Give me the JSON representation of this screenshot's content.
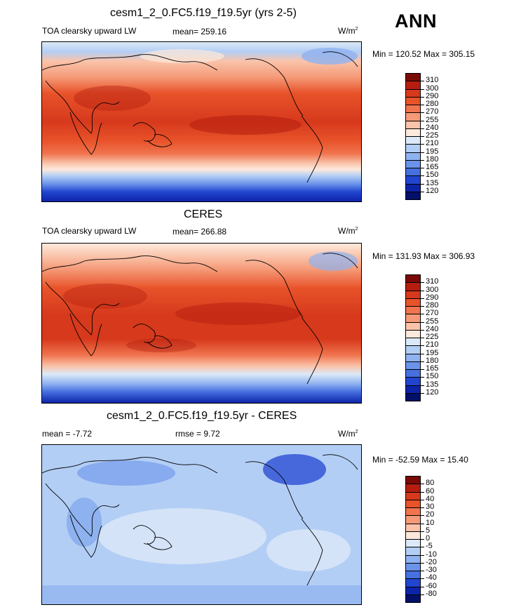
{
  "header": {
    "season": "ANN"
  },
  "panels": [
    {
      "title": "cesm1_2_0.FC5.f19_f19.5yr (yrs 2-5)",
      "variable": "TOA clearsky upward LW",
      "stat1": "mean= 259.16",
      "stat2": "",
      "units": "W/m",
      "units_sup": "2",
      "minmax": "Min = 120.52 Max = 305.15",
      "kind": "abs",
      "colorbar": {
        "labels": [
          "310",
          "300",
          "290",
          "280",
          "270",
          "255",
          "240",
          "225",
          "210",
          "195",
          "180",
          "165",
          "150",
          "135",
          "120"
        ],
        "colors": [
          "#7a0a06",
          "#b51e0f",
          "#d6391c",
          "#e8532a",
          "#f0744e",
          "#f59a78",
          "#fac3aa",
          "#fce9dc",
          "#dce9f8",
          "#b3cef5",
          "#8fb2f0",
          "#6a93ea",
          "#4670e0",
          "#2245d0",
          "#0d24a8",
          "#02106a"
        ]
      }
    },
    {
      "title": "CERES",
      "variable": "TOA clearsky upward LW",
      "stat1": "mean= 266.88",
      "stat2": "",
      "units": "W/m",
      "units_sup": "2",
      "minmax": "Min = 131.93 Max = 306.93",
      "kind": "abs",
      "colorbar": {
        "labels": [
          "310",
          "300",
          "290",
          "280",
          "270",
          "255",
          "240",
          "225",
          "210",
          "195",
          "180",
          "165",
          "150",
          "135",
          "120"
        ],
        "colors": [
          "#7a0a06",
          "#b51e0f",
          "#d6391c",
          "#e8532a",
          "#f0744e",
          "#f59a78",
          "#fac3aa",
          "#fce9dc",
          "#dce9f8",
          "#b3cef5",
          "#8fb2f0",
          "#6a93ea",
          "#4670e0",
          "#2245d0",
          "#0d24a8",
          "#02106a"
        ]
      }
    },
    {
      "title": "cesm1_2_0.FC5.f19_f19.5yr - CERES",
      "variable": "",
      "stat1": "mean =  -7.72",
      "stat2": "rmse =   9.72",
      "units": "W/m",
      "units_sup": "2",
      "minmax": "Min = -52.59 Max =  15.40",
      "kind": "diff",
      "colorbar": {
        "labels": [
          "80",
          "60",
          "40",
          "30",
          "20",
          "10",
          "5",
          "0",
          "-5",
          "-10",
          "-20",
          "-30",
          "-40",
          "-60",
          "-80"
        ],
        "colors": [
          "#7a0a06",
          "#b51e0f",
          "#d6391c",
          "#e8532a",
          "#f0744e",
          "#f59a78",
          "#fac3aa",
          "#fce9dc",
          "#dce9f8",
          "#b3cef5",
          "#8fb2f0",
          "#6a93ea",
          "#4670e0",
          "#2245d0",
          "#0d24a8",
          "#02106a"
        ]
      }
    }
  ]
}
